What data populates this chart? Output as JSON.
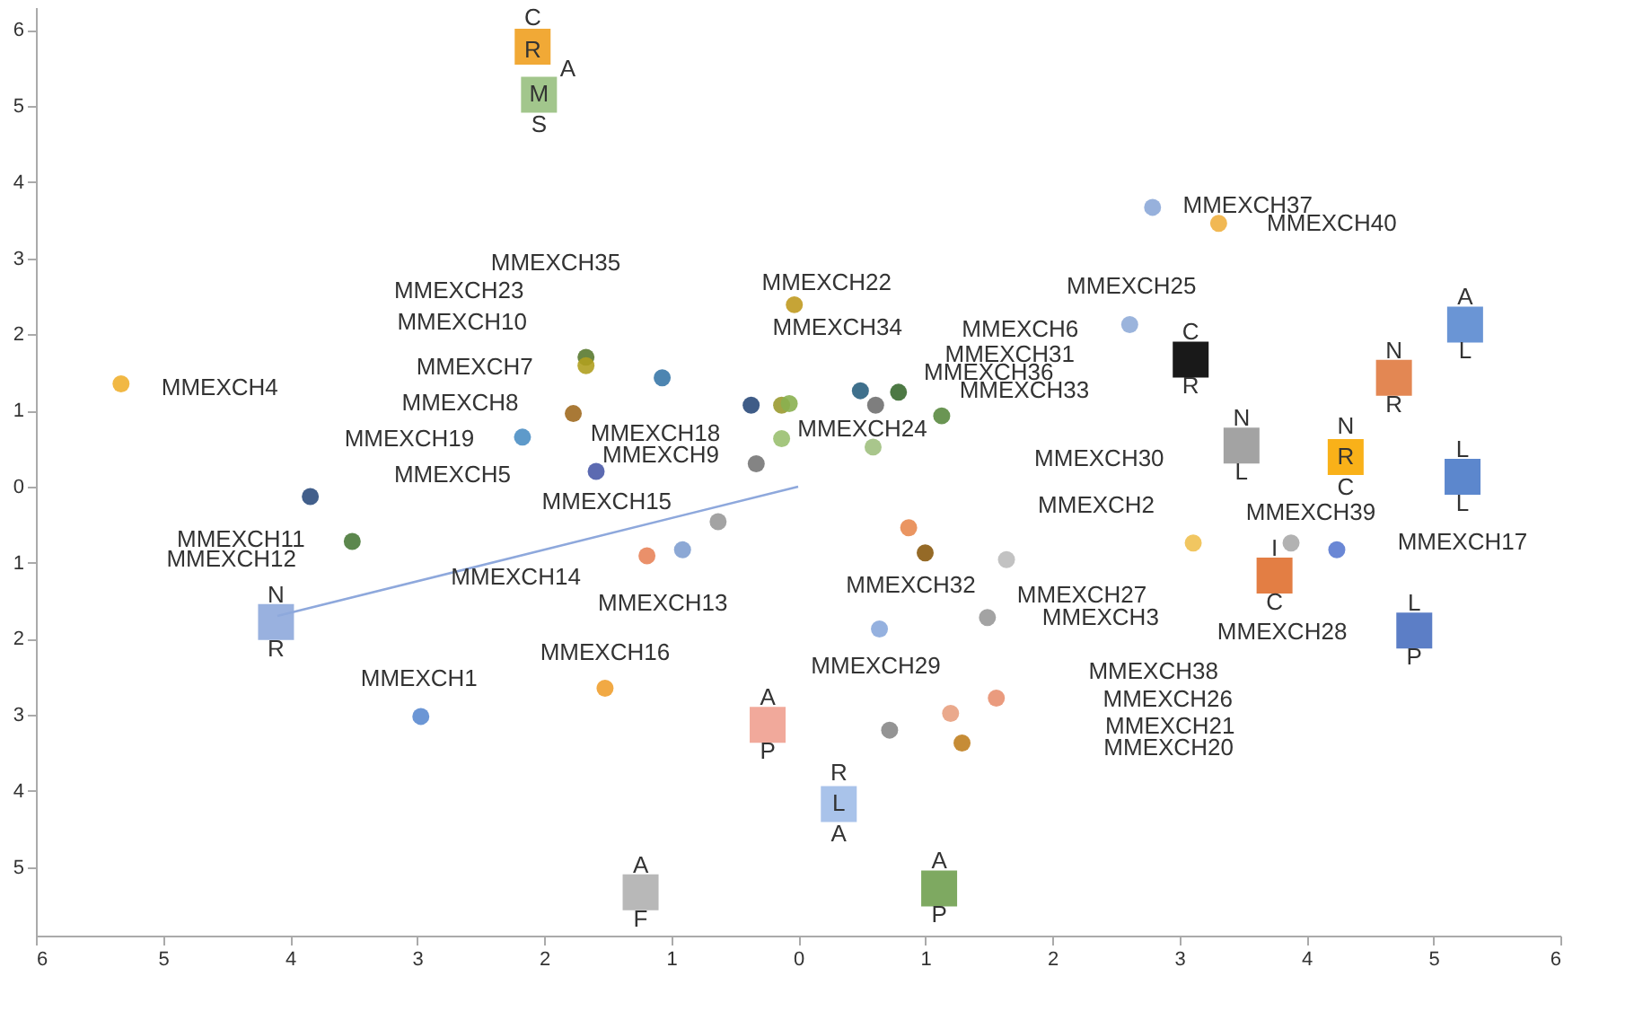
{
  "chart_data": {
    "type": "scatter",
    "xlim": [
      -6,
      6
    ],
    "ylim": [
      -5.9,
      6.3
    ],
    "xticks": [
      {
        "value": -6,
        "label": "6"
      },
      {
        "value": -5,
        "label": "5"
      },
      {
        "value": -4,
        "label": "4"
      },
      {
        "value": -3,
        "label": "3"
      },
      {
        "value": -2,
        "label": "2"
      },
      {
        "value": -1,
        "label": "1"
      },
      0,
      1,
      2,
      3,
      4,
      5,
      6
    ],
    "yticks": [
      {
        "value": -5,
        "label": "5"
      },
      {
        "value": -4,
        "label": "4"
      },
      {
        "value": -3,
        "label": "3"
      },
      {
        "value": -2,
        "label": "2"
      },
      {
        "value": -1,
        "label": "1"
      },
      0,
      1,
      2,
      3,
      4,
      5,
      6
    ],
    "grid": false,
    "series": [
      {
        "type": "line",
        "color": "#8ea8dc",
        "x": [
          -4.1,
          0
        ],
        "values": [
          -1.7,
          0
        ]
      },
      {
        "marker": "circle",
        "x": [
          -5.33,
          -3.84,
          -3.51,
          -2.97,
          -2.17,
          -1.67,
          -1.67,
          -1.77,
          -1.59,
          -1.07,
          -1.19,
          -0.91,
          -0.63,
          -1.52,
          -0.37,
          -0.13,
          -0.07,
          -0.33,
          -0.13,
          -0.03,
          0.49,
          0.61,
          0.79,
          1.13,
          0.59,
          0.87,
          1.0,
          1.64,
          1.49,
          0.64,
          1.56,
          1.2,
          0.72,
          1.29,
          3.11,
          3.88,
          4.24,
          2.79,
          3.31,
          2.61
        ],
        "values": [
          1.35,
          -0.13,
          -0.72,
          -3.02,
          0.65,
          1.7,
          1.59,
          0.96,
          0.2,
          1.43,
          -0.91,
          -0.83,
          -0.46,
          -2.65,
          1.07,
          1.07,
          1.09,
          0.3,
          0.63,
          2.39,
          1.26,
          1.07,
          1.24,
          0.93,
          0.52,
          -0.54,
          -0.87,
          -0.96,
          -1.72,
          -1.87,
          -2.78,
          -2.98,
          -3.2,
          -3.37,
          -0.74,
          -0.74,
          -0.83,
          3.67,
          3.46,
          2.13
        ],
        "colors": [
          "#f0b030",
          "#2e4e7e",
          "#4a7a3a",
          "#5b8bd0",
          "#4d8fc4",
          "#5a7a30",
          "#b0a020",
          "#a06a20",
          "#4a5aa8",
          "#3a78a8",
          "#e8845a",
          "#7f9fd0",
          "#999999",
          "#f0a030",
          "#2a4a7a",
          "#9a9a30",
          "#8ab050",
          "#777777",
          "#9ac070",
          "#c09a20",
          "#2a6080",
          "#707070",
          "#3a6a30",
          "#5a8a40",
          "#a0c080",
          "#e88a50",
          "#8a5a10",
          "#bbbbbb",
          "#999999",
          "#8aa8dc",
          "#e89070",
          "#e8a080",
          "#888888",
          "#c08020",
          "#f0c050",
          "#aaaaaa",
          "#5a7ad0",
          "#8ca8d8",
          "#f0b040",
          "#90acd8"
        ]
      },
      {
        "marker": "square",
        "x": [
          -2.09,
          -2.04,
          -4.11,
          -0.24,
          0.32,
          -1.24,
          1.11,
          3.09,
          5.25,
          4.69,
          3.49,
          4.31,
          5.23,
          3.75,
          4.85
        ],
        "values": [
          5.78,
          5.15,
          -1.78,
          -3.13,
          -4.17,
          -5.33,
          -5.28,
          1.67,
          2.13,
          1.43,
          0.54,
          0.39,
          0.13,
          -1.17,
          -1.89
        ],
        "colors": [
          "#f0a020",
          "#98c080",
          "#8ea8dc",
          "#f0a090",
          "#a0bce8",
          "#b0b0b0",
          "#70a050",
          "#000000",
          "#5a8ad0",
          "#e07a40",
          "#999999",
          "#f8a800",
          "#4a7ac8",
          "#e07030",
          "#4a70c0"
        ]
      }
    ],
    "annotations": [
      {
        "text": "MMEXCH4",
        "x": -5.33,
        "y": 1.35
      },
      "MMEXCH35",
      "MMEXCH23",
      {
        "text": "MMEXCH10",
        "x": -1.67,
        "y": 1.59
      },
      {
        "text": "MMEXCH7",
        "x": -1.67,
        "y": 1.59
      },
      {
        "text": "MMEXCH8",
        "x": -1.77,
        "y": 0.96
      },
      {
        "text": "MMEXCH19",
        "x": -2.17,
        "y": 0.65
      },
      {
        "text": "MMEXCH18",
        "x": -1.59,
        "y": 0.2
      },
      {
        "text": "MMEXCH9",
        "x": -1.59,
        "y": 0.2
      },
      {
        "text": "MMEXCH5",
        "x": -2.17,
        "y": 0.65
      },
      {
        "text": "MMEXCH15",
        "x": -0.63,
        "y": -0.46
      },
      {
        "text": "MMEXCH11",
        "x": -3.51,
        "y": -0.72
      },
      {
        "text": "MMEXCH12",
        "x": -3.84,
        "y": -0.13
      },
      {
        "text": "MMEXCH14",
        "x": -1.19,
        "y": -0.91
      },
      {
        "text": "MMEXCH13",
        "x": -0.91,
        "y": -0.83
      },
      {
        "text": "MMEXCH16",
        "x": -1.52,
        "y": -2.65
      },
      {
        "text": "MMEXCH1",
        "x": -2.97,
        "y": -3.02
      },
      {
        "text": "MMEXCH22",
        "x": -0.03,
        "y": 2.39
      },
      {
        "text": "MMEXCH34",
        "x": -0.03,
        "y": 2.39
      },
      {
        "text": "MMEXCH25",
        "x": 2.61,
        "y": 2.13
      },
      {
        "text": "MMEXCH6",
        "x": 2.61,
        "y": 2.13
      },
      {
        "text": "MMEXCH31",
        "x": 0.79,
        "y": 1.24
      },
      {
        "text": "MMEXCH36",
        "x": 0.61,
        "y": 1.07
      },
      {
        "text": "MMEXCH33",
        "x": 1.13,
        "y": 0.93
      },
      {
        "text": "MMEXCH24",
        "x": 0.59,
        "y": 0.52
      },
      {
        "text": "MMEXCH37",
        "x": 2.79,
        "y": 3.67
      },
      {
        "text": "MMEXCH40",
        "x": 3.31,
        "y": 3.46
      },
      "MMEXCH30",
      {
        "text": "MMEXCH2",
        "x": 3.11,
        "y": -0.74
      },
      {
        "text": "MMEXCH39",
        "x": 3.88,
        "y": -0.74
      },
      {
        "text": "MMEXCH17",
        "x": 4.24,
        "y": -0.83
      },
      {
        "text": "MMEXCH32",
        "x": 1.0,
        "y": -0.87
      },
      {
        "text": "MMEXCH27",
        "x": 1.64,
        "y": -0.96
      },
      {
        "text": "MMEXCH3",
        "x": 1.49,
        "y": -1.72
      },
      "MMEXCH28",
      {
        "text": "MMEXCH29",
        "x": 0.64,
        "y": -1.87
      },
      "MMEXCH38",
      "MMEXCH26",
      "MMEXCH21",
      "MMEXCH20",
      {
        "text": "C",
        "x": -2.09,
        "y": 5.78
      },
      {
        "text": "R",
        "x": -2.09,
        "y": 5.78
      },
      {
        "text": "A",
        "x": -2.04,
        "y": 5.15
      },
      {
        "text": "M",
        "x": -2.04,
        "y": 5.15
      },
      {
        "text": "S",
        "x": -2.04,
        "y": 5.15
      },
      {
        "text": "N",
        "x": -4.11,
        "y": -1.78
      },
      {
        "text": "R",
        "x": -4.11,
        "y": -1.78
      },
      {
        "text": "A",
        "x": -0.24,
        "y": -3.13
      },
      {
        "text": "P",
        "x": -0.24,
        "y": -3.13
      },
      {
        "text": "R",
        "x": 0.32,
        "y": -4.17
      },
      {
        "text": "L",
        "x": 0.32,
        "y": -4.17
      },
      {
        "text": "A",
        "x": 0.32,
        "y": -4.17
      },
      {
        "text": "A",
        "x": -1.24,
        "y": -5.33
      },
      {
        "text": "F",
        "x": -1.24,
        "y": -5.33
      },
      {
        "text": "A",
        "x": 1.11,
        "y": -5.28
      },
      {
        "text": "P",
        "x": 1.11,
        "y": -5.28
      },
      {
        "text": "C",
        "x": 3.09,
        "y": 1.67
      },
      {
        "text": "R",
        "x": 3.09,
        "y": 1.67
      },
      {
        "text": "A",
        "x": 5.25,
        "y": 2.13
      },
      {
        "text": "L",
        "x": 5.25,
        "y": 2.13
      },
      {
        "text": "N",
        "x": 4.69,
        "y": 1.43
      },
      {
        "text": "R",
        "x": 4.69,
        "y": 1.43
      },
      {
        "text": "N",
        "x": 3.49,
        "y": 0.54
      },
      {
        "text": "L",
        "x": 3.49,
        "y": 0.54
      },
      {
        "text": "N",
        "x": 4.31,
        "y": 0.39
      },
      {
        "text": "R",
        "x": 4.31,
        "y": 0.39
      },
      {
        "text": "C",
        "x": 4.31,
        "y": 0.39
      },
      {
        "text": "L",
        "x": 5.23,
        "y": 0.13
      },
      {
        "text": "L",
        "x": 5.23,
        "y": 0.13
      },
      {
        "text": "I",
        "x": 3.75,
        "y": -1.17
      },
      {
        "text": "C",
        "x": 3.75,
        "y": -1.17
      },
      {
        "text": "L",
        "x": 4.85,
        "y": -1.89
      },
      {
        "text": "P",
        "x": 4.85,
        "y": -1.89
      }
    ]
  }
}
